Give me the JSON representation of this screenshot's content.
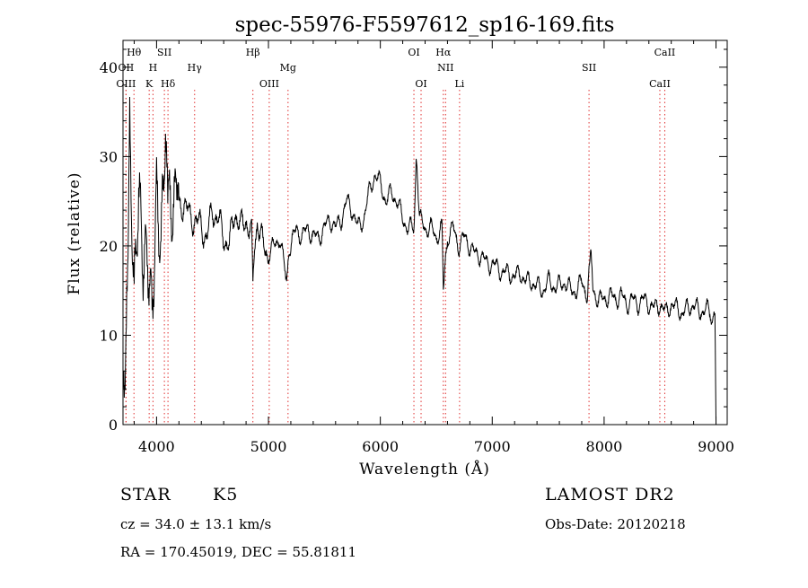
{
  "chart_data": {
    "type": "line",
    "title": "spec-55976-F5597612_sp16-169.fits",
    "xlabel": "Wavelength (Å)",
    "ylabel": "Flux (relative)",
    "xlim": [
      3700,
      9100
    ],
    "ylim": [
      0,
      43
    ],
    "xticks": [
      "4000",
      "5000",
      "6000",
      "7000",
      "8000",
      "9000"
    ],
    "yticks": [
      "0",
      "10",
      "20",
      "30",
      "40"
    ],
    "grid": false,
    "series": [
      {
        "x": [
          3700,
          3730,
          3760,
          3800,
          3840,
          3880,
          3920,
          3960,
          4000,
          4040,
          4080,
          4100,
          4150,
          4200,
          4250,
          4300,
          4350,
          4400,
          4450,
          4500,
          4550,
          4600,
          4650,
          4700,
          4750,
          4800,
          4850,
          4861,
          4900,
          4950,
          5000,
          5050,
          5100,
          5150,
          5183,
          5200,
          5250,
          5300,
          5350,
          5400,
          5450,
          5500,
          5550,
          5600,
          5650,
          5700,
          5750,
          5800,
          5850,
          5900,
          5950,
          6000,
          6050,
          6100,
          6150,
          6200,
          6250,
          6300,
          6320,
          6350,
          6400,
          6450,
          6500,
          6550,
          6563,
          6600,
          6650,
          6700,
          6750,
          6800,
          6850,
          6900,
          6950,
          7000,
          7050,
          7100,
          7150,
          7200,
          7250,
          7300,
          7350,
          7400,
          7450,
          7500,
          7550,
          7600,
          7650,
          7700,
          7750,
          7800,
          7850,
          7880,
          7900,
          7950,
          8000,
          8050,
          8100,
          8150,
          8200,
          8250,
          8300,
          8350,
          8400,
          8450,
          8500,
          8550,
          8600,
          8650,
          8700,
          8750,
          8800,
          8850,
          8900,
          8950,
          8990,
          9000
        ],
        "values": [
          0,
          6,
          30,
          12,
          25,
          18,
          20,
          14,
          28,
          22,
          36,
          24,
          27,
          24,
          25,
          23,
          23,
          22,
          21,
          24,
          23,
          21,
          20,
          24,
          22,
          23,
          21,
          16,
          23,
          20,
          19,
          20,
          21,
          17,
          18,
          20,
          22,
          21,
          22,
          21,
          21,
          22,
          23,
          22,
          23,
          25,
          24,
          22,
          23,
          26,
          28,
          27,
          25,
          26,
          25,
          23,
          22,
          22,
          30,
          23,
          22,
          22,
          21,
          22,
          16,
          21,
          22,
          20,
          21,
          20,
          19,
          19,
          18,
          18,
          17.5,
          17,
          17,
          16.5,
          17,
          16,
          16,
          15.5,
          15,
          16,
          15.5,
          15.5,
          16,
          15,
          15,
          16,
          14.5,
          20,
          15,
          14,
          14,
          14.5,
          14,
          14.5,
          13.5,
          14,
          13.5,
          14,
          13.5,
          13,
          13.5,
          12.5,
          13.5,
          13,
          12.5,
          13,
          13.5,
          12.5,
          13,
          12.5,
          12,
          0
        ]
      }
    ],
    "lines": [
      {
        "label": "Hθ",
        "wl": 3798,
        "row": 0
      },
      {
        "label": "OII",
        "wl": 3727,
        "row": 1
      },
      {
        "label": "OIII",
        "wl": 3727,
        "row": 2
      },
      {
        "label": "SII",
        "wl": 4070,
        "row": 0
      },
      {
        "label": "H",
        "wl": 3968,
        "row": 1
      },
      {
        "label": "K",
        "wl": 3934,
        "row": 2
      },
      {
        "label": "Hδ",
        "wl": 4102,
        "row": 2
      },
      {
        "label": "Hγ",
        "wl": 4340,
        "row": 1
      },
      {
        "label": "Hβ",
        "wl": 4861,
        "row": 0
      },
      {
        "label": "Mg",
        "wl": 5175,
        "row": 1
      },
      {
        "label": "OIII",
        "wl": 5007,
        "row": 2
      },
      {
        "label": "OI",
        "wl": 6300,
        "row": 0
      },
      {
        "label": "OI",
        "wl": 6364,
        "row": 2
      },
      {
        "label": "Hα",
        "wl": 6563,
        "row": 0
      },
      {
        "label": "NII",
        "wl": 6583,
        "row": 1
      },
      {
        "label": "Li",
        "wl": 6708,
        "row": 2
      },
      {
        "label": "SII",
        "wl": 7865,
        "row": 1
      },
      {
        "label": "CaII",
        "wl": 8542,
        "row": 0
      },
      {
        "label": "CaII",
        "wl": 8498,
        "row": 2
      }
    ]
  },
  "footer": {
    "class": "STAR",
    "subclass": "K5",
    "survey": "LAMOST DR2",
    "cz": "cz = 34.0 ± 13.1 km/s",
    "obsdate": "Obs-Date: 20120218",
    "radec": "RA = 170.45019, DEC =  55.81811"
  },
  "colors": {
    "axis": "#000000",
    "spectrum": "#000000",
    "lines": "#e03030"
  }
}
